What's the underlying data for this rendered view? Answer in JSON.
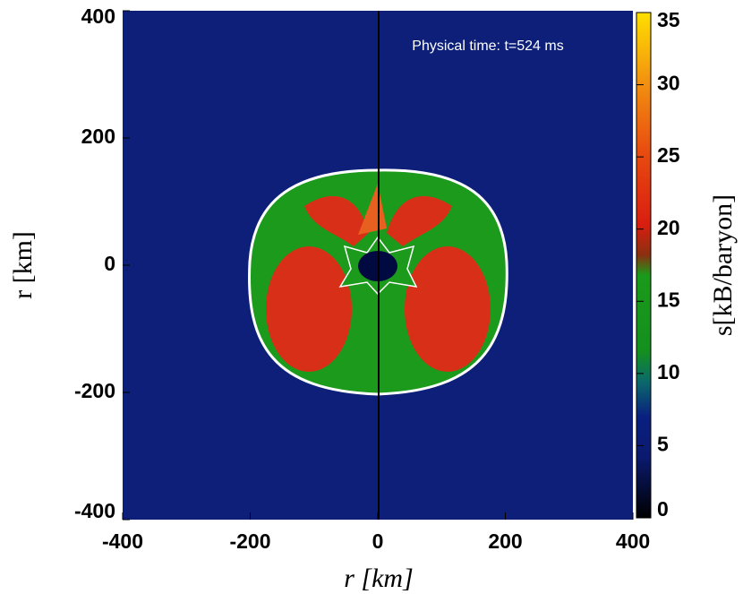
{
  "chart_data": {
    "type": "heatmap",
    "annotation": "Physical time: t=524 ms",
    "xlabel": "r [km]",
    "ylabel": "r [km]",
    "xlim": [
      -400,
      400
    ],
    "ylim": [
      -400,
      400
    ],
    "xticks": [
      -400,
      -200,
      0,
      200,
      400
    ],
    "yticks": [
      -400,
      -200,
      0,
      200,
      400
    ],
    "colorbar": {
      "label": "s[kB/baryon]",
      "lim": [
        0,
        35
      ],
      "ticks": [
        0,
        5,
        10,
        15,
        20,
        25,
        30,
        35
      ]
    }
  }
}
